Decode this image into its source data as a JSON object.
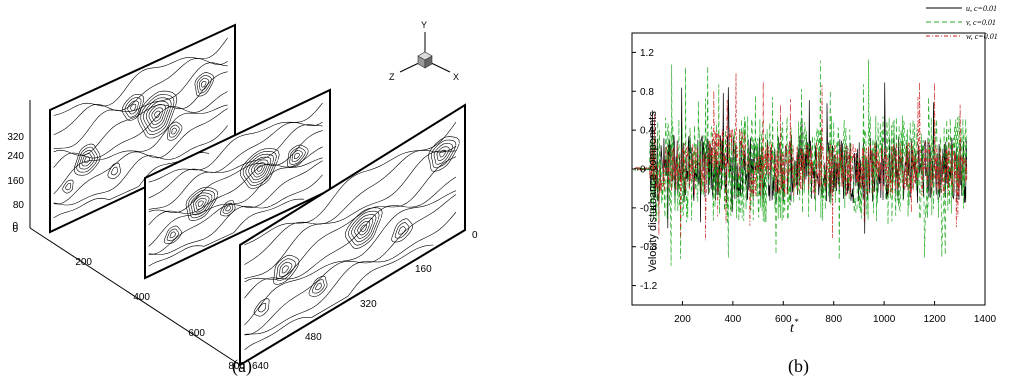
{
  "figure": {
    "panel_a": {
      "label": "(a)",
      "triad_labels": [
        "Y",
        "Z",
        "X"
      ],
      "axis_vertical_ticks": [
        "0",
        "80",
        "160",
        "240",
        "320"
      ],
      "axis_front_ticks": [
        "200",
        "400",
        "600",
        "800"
      ],
      "axis_back_ticks": [
        "0",
        "160",
        "320",
        "480",
        "640"
      ]
    },
    "panel_b": {
      "label": "(b)"
    }
  },
  "chart_data": {
    "type": "line",
    "xlabel": "t*",
    "ylabel": "Velocity disturbance components",
    "xlim": [
      0,
      1400
    ],
    "ylim": [
      -1.4,
      1.4
    ],
    "x_ticks": [
      200,
      400,
      600,
      800,
      1000,
      1200,
      1400
    ],
    "y_ticks": [
      -1.2,
      -0.8,
      -0.4,
      0,
      0.4,
      0.8,
      1.2
    ],
    "y_tick_labels": [
      "-1.2",
      "-0.8",
      "-0.4",
      "0",
      "0.4",
      "0.8",
      "1.2"
    ],
    "legend_position": "top-right",
    "series": [
      {
        "name": "u, c=0.01",
        "color": "#000000",
        "style": "solid"
      },
      {
        "name": "v, c=0.01",
        "color": "#22aa22",
        "style": "dashed"
      },
      {
        "name": "w, c=0.01",
        "color": "#cc2222",
        "style": "dash-dot"
      }
    ],
    "t_start": 10,
    "t_end": 1330,
    "onset_t": 70
  }
}
